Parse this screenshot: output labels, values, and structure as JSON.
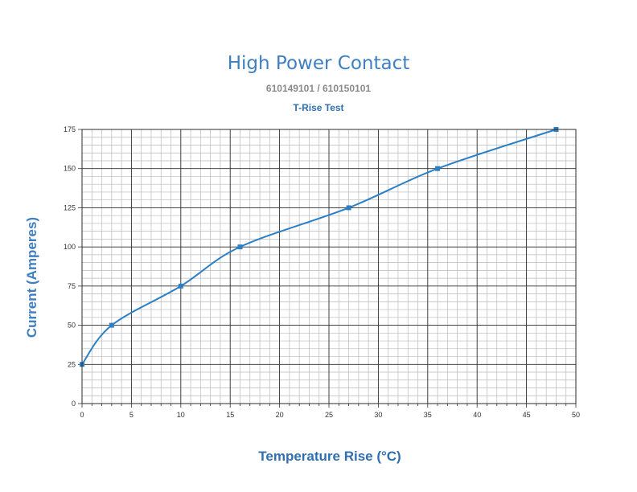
{
  "title": "High Power Contact",
  "subtitle": "610149101 / 610150101",
  "subtitle2": "T-Rise Test",
  "chart_data": {
    "type": "line",
    "title": "High Power Contact",
    "xlabel": "Temperature Rise (°C)",
    "ylabel": "Current (Amperes)",
    "xlim": [
      0,
      50
    ],
    "ylim": [
      0,
      175
    ],
    "xticks": [
      "0",
      "5",
      "10",
      "15",
      "20",
      "25",
      "30",
      "35",
      "40",
      "45",
      "50"
    ],
    "yticks": [
      "0",
      "25",
      "50",
      "75",
      "100",
      "125",
      "150",
      "175"
    ],
    "grid": true,
    "series": [
      {
        "color": "#2a7fc6",
        "x": [
          0,
          3,
          10,
          16,
          27,
          36,
          48
        ],
        "y": [
          25,
          50,
          75,
          100,
          125,
          150,
          175
        ]
      }
    ]
  }
}
